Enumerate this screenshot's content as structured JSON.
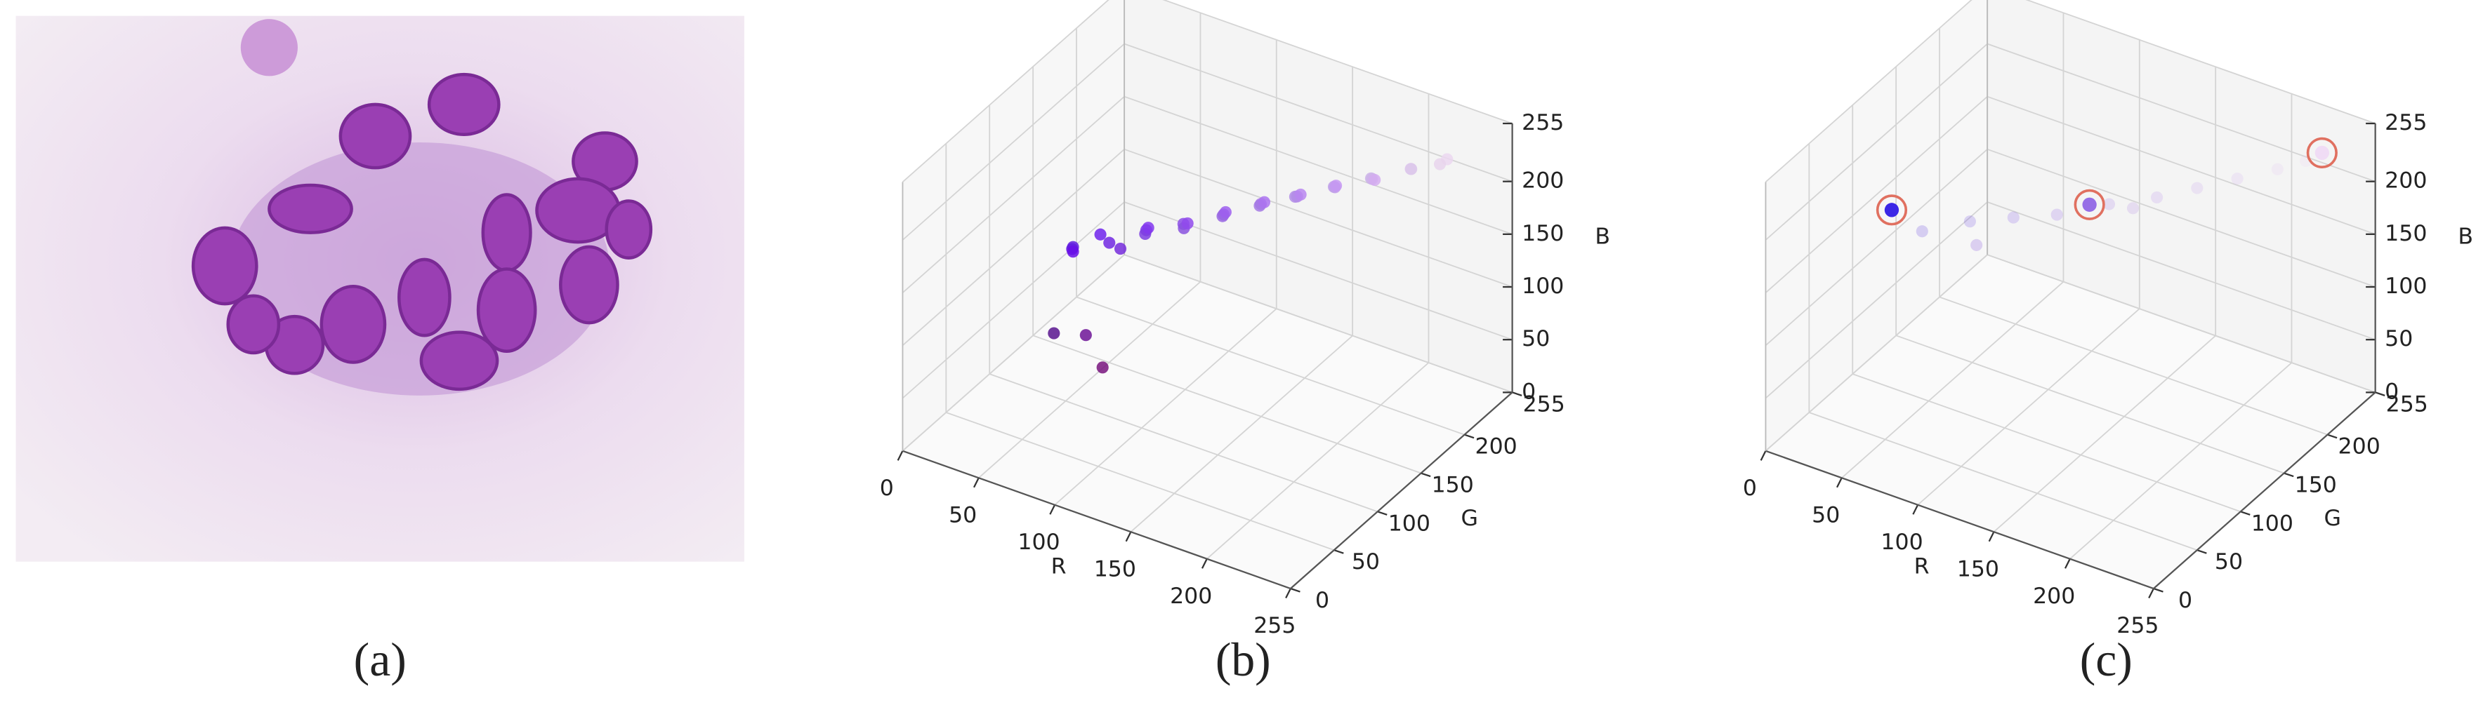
{
  "image_caption": "(a)",
  "chart_data": [
    {
      "type": "scatter3d",
      "caption": "(b)",
      "xlabel": "R",
      "ylabel": "G",
      "zlabel": "B",
      "xlim": [
        0,
        255
      ],
      "ylim": [
        0,
        255
      ],
      "zlim": [
        0,
        255
      ],
      "xticks": [
        0,
        50,
        100,
        150,
        200,
        255
      ],
      "yticks": [
        0,
        50,
        100,
        150,
        200,
        255
      ],
      "zticks": [
        0,
        50,
        100,
        150,
        200,
        255
      ],
      "grid": true,
      "opacity": 0.85,
      "x": [
        100,
        96,
        104,
        113,
        110,
        118,
        127,
        124,
        130,
        140,
        138,
        145,
        155,
        152,
        158,
        168,
        165,
        172,
        181,
        178,
        185,
        195,
        192,
        198,
        208,
        205,
        212,
        222,
        220,
        235,
        232,
        88,
        109,
        120
      ],
      "y": [
        20,
        28,
        14,
        40,
        35,
        44,
        58,
        62,
        55,
        78,
        82,
        74,
        98,
        102,
        95,
        118,
        122,
        115,
        137,
        140,
        134,
        156,
        160,
        152,
        176,
        180,
        172,
        196,
        200,
        215,
        212,
        20,
        20,
        20
      ],
      "z": [
        228,
        222,
        232,
        226,
        236,
        220,
        232,
        224,
        238,
        230,
        222,
        236,
        232,
        226,
        238,
        234,
        228,
        240,
        234,
        230,
        240,
        236,
        232,
        242,
        236,
        232,
        240,
        238,
        234,
        240,
        236,
        142,
        151,
        126
      ]
    },
    {
      "type": "scatter3d",
      "caption": "(c)",
      "xlabel": "R",
      "ylabel": "G",
      "zlabel": "B",
      "xlim": [
        0,
        255
      ],
      "ylim": [
        0,
        255
      ],
      "zlim": [
        0,
        255
      ],
      "xticks": [
        0,
        50,
        100,
        150,
        200,
        255
      ],
      "yticks": [
        0,
        50,
        100,
        150,
        200,
        255
      ],
      "zticks": [
        0,
        50,
        100,
        150,
        200,
        255
      ],
      "grid": true,
      "opacity": 0.2,
      "ring_color": "#e07060",
      "x": [
        80,
        100,
        120,
        140,
        160,
        180,
        195,
        210,
        225,
        235,
        110,
        170
      ],
      "y": [
        40,
        60,
        75,
        90,
        115,
        135,
        155,
        175,
        195,
        210,
        50,
        125
      ],
      "z": [
        220,
        225,
        228,
        230,
        232,
        234,
        236,
        238,
        240,
        242,
        215,
        226
      ],
      "highlight": {
        "x": [
          60,
          150,
          240
        ],
        "y": [
          40,
          110,
          220
        ],
        "z": [
          230,
          230,
          245
        ]
      }
    }
  ]
}
